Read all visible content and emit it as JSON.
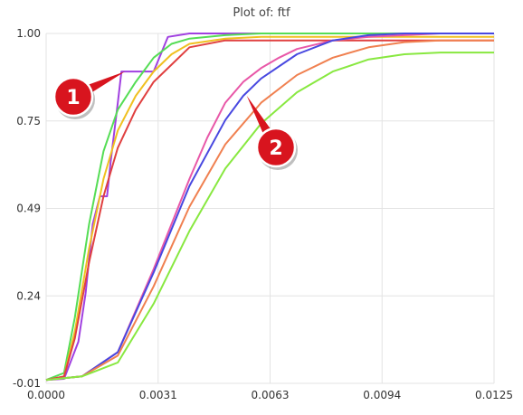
{
  "chart_data": {
    "type": "line",
    "title": "Plot of: ftf",
    "xlabel": "",
    "ylabel": "",
    "xlim": [
      0,
      0.0125
    ],
    "ylim": [
      -0.01,
      1.0
    ],
    "x_tick_labels": [
      "0.0000",
      "0.0031",
      "0.0063",
      "0.0094",
      "0.0125"
    ],
    "y_tick_labels": [
      "1.00",
      "0.75",
      "0.49",
      "0.24",
      "-0.01"
    ],
    "grid": true,
    "series": [
      {
        "color": "#a040e0",
        "values": [
          [
            0,
            0
          ],
          [
            0.0005,
            0.003
          ],
          [
            0.0009,
            0.11
          ],
          [
            0.0011,
            0.25
          ],
          [
            0.0013,
            0.45
          ],
          [
            0.0015,
            0.53
          ],
          [
            0.0017,
            0.53
          ],
          [
            0.0018,
            0.63
          ],
          [
            0.002,
            0.8
          ],
          [
            0.0021,
            0.89
          ],
          [
            0.0023,
            0.89
          ],
          [
            0.0025,
            0.89
          ],
          [
            0.003,
            0.89
          ],
          [
            0.0034,
            0.99
          ],
          [
            0.004,
            1.0
          ],
          [
            0.0125,
            1.0
          ]
        ]
      },
      {
        "color": "#55dd55",
        "values": [
          [
            0,
            0
          ],
          [
            0.0005,
            0.02
          ],
          [
            0.0008,
            0.18
          ],
          [
            0.0012,
            0.45
          ],
          [
            0.0016,
            0.66
          ],
          [
            0.002,
            0.78
          ],
          [
            0.0025,
            0.86
          ],
          [
            0.003,
            0.93
          ],
          [
            0.0035,
            0.97
          ],
          [
            0.004,
            0.985
          ],
          [
            0.005,
            0.995
          ],
          [
            0.006,
            1.0
          ],
          [
            0.0125,
            1.0
          ]
        ]
      },
      {
        "color": "#f0c020",
        "values": [
          [
            0,
            0
          ],
          [
            0.0005,
            0.01
          ],
          [
            0.0008,
            0.14
          ],
          [
            0.0012,
            0.38
          ],
          [
            0.0016,
            0.58
          ],
          [
            0.002,
            0.72
          ],
          [
            0.0025,
            0.82
          ],
          [
            0.003,
            0.89
          ],
          [
            0.0035,
            0.94
          ],
          [
            0.004,
            0.97
          ],
          [
            0.005,
            0.985
          ],
          [
            0.006,
            0.99
          ],
          [
            0.0125,
            0.99
          ]
        ]
      },
      {
        "color": "#e04040",
        "values": [
          [
            0,
            0
          ],
          [
            0.0005,
            0.01
          ],
          [
            0.0008,
            0.12
          ],
          [
            0.0012,
            0.34
          ],
          [
            0.0016,
            0.53
          ],
          [
            0.002,
            0.67
          ],
          [
            0.0025,
            0.78
          ],
          [
            0.003,
            0.86
          ],
          [
            0.0035,
            0.91
          ],
          [
            0.004,
            0.96
          ],
          [
            0.005,
            0.98
          ],
          [
            0.006,
            0.98
          ],
          [
            0.0125,
            0.98
          ]
        ]
      },
      {
        "color": "#e858a8",
        "values": [
          [
            0,
            0
          ],
          [
            0.001,
            0.01
          ],
          [
            0.002,
            0.08
          ],
          [
            0.003,
            0.32
          ],
          [
            0.004,
            0.58
          ],
          [
            0.0045,
            0.7
          ],
          [
            0.005,
            0.8
          ],
          [
            0.0055,
            0.86
          ],
          [
            0.006,
            0.9
          ],
          [
            0.0065,
            0.93
          ],
          [
            0.007,
            0.955
          ],
          [
            0.008,
            0.98
          ],
          [
            0.009,
            0.99
          ],
          [
            0.01,
            0.995
          ],
          [
            0.011,
            1.0
          ],
          [
            0.0125,
            1.0
          ]
        ]
      },
      {
        "color": "#4848e0",
        "values": [
          [
            0,
            0
          ],
          [
            0.001,
            0.01
          ],
          [
            0.002,
            0.08
          ],
          [
            0.003,
            0.31
          ],
          [
            0.004,
            0.56
          ],
          [
            0.005,
            0.75
          ],
          [
            0.0055,
            0.82
          ],
          [
            0.006,
            0.87
          ],
          [
            0.007,
            0.94
          ],
          [
            0.008,
            0.98
          ],
          [
            0.009,
            0.995
          ],
          [
            0.01,
            1.0
          ],
          [
            0.0125,
            1.0
          ]
        ]
      },
      {
        "color": "#f08050",
        "values": [
          [
            0,
            0
          ],
          [
            0.001,
            0.01
          ],
          [
            0.002,
            0.07
          ],
          [
            0.003,
            0.27
          ],
          [
            0.004,
            0.5
          ],
          [
            0.005,
            0.68
          ],
          [
            0.006,
            0.8
          ],
          [
            0.007,
            0.88
          ],
          [
            0.008,
            0.93
          ],
          [
            0.009,
            0.96
          ],
          [
            0.01,
            0.975
          ],
          [
            0.011,
            0.98
          ],
          [
            0.0125,
            0.98
          ]
        ]
      },
      {
        "color": "#88e840",
        "values": [
          [
            0,
            0
          ],
          [
            0.001,
            0.01
          ],
          [
            0.002,
            0.05
          ],
          [
            0.003,
            0.22
          ],
          [
            0.004,
            0.43
          ],
          [
            0.005,
            0.61
          ],
          [
            0.006,
            0.74
          ],
          [
            0.007,
            0.83
          ],
          [
            0.008,
            0.89
          ],
          [
            0.009,
            0.925
          ],
          [
            0.01,
            0.94
          ],
          [
            0.011,
            0.945
          ],
          [
            0.0125,
            0.945
          ]
        ]
      }
    ],
    "annotations": [
      {
        "label": "1",
        "points_to": [
          0.0022,
          0.89
        ]
      },
      {
        "label": "2",
        "points_to": [
          0.0056,
          0.82
        ]
      }
    ]
  }
}
